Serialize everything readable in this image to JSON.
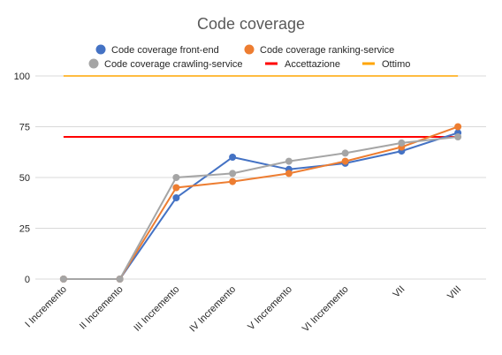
{
  "chart_data": {
    "type": "line",
    "title": "Code coverage",
    "categories": [
      "I Incremento",
      "II Incremento",
      "III Incremento",
      "IV Incremento",
      "V Incremento",
      "VI Incremento",
      "VII",
      "VIII"
    ],
    "series": [
      {
        "name": "Code coverage front-end",
        "values": [
          0,
          0,
          40,
          60,
          54,
          57,
          63,
          72
        ],
        "color": "#4472C4"
      },
      {
        "name": "Code coverage ranking-service",
        "values": [
          0,
          0,
          45,
          48,
          52,
          58,
          65,
          75
        ],
        "color": "#ED7D31"
      },
      {
        "name": "Code coverage crawling-service",
        "values": [
          0,
          0,
          50,
          52,
          58,
          62,
          67,
          70
        ],
        "color": "#A5A5A5"
      }
    ],
    "reference_lines": [
      {
        "name": "Accettazione",
        "value": 70,
        "color": "#FF0000"
      },
      {
        "name": "Ottimo",
        "value": 100,
        "color": "#FFA500"
      }
    ],
    "yticks": [
      0,
      25,
      50,
      75,
      100
    ],
    "ylim": [
      0,
      100
    ],
    "grid": true,
    "legend_position": "top"
  }
}
